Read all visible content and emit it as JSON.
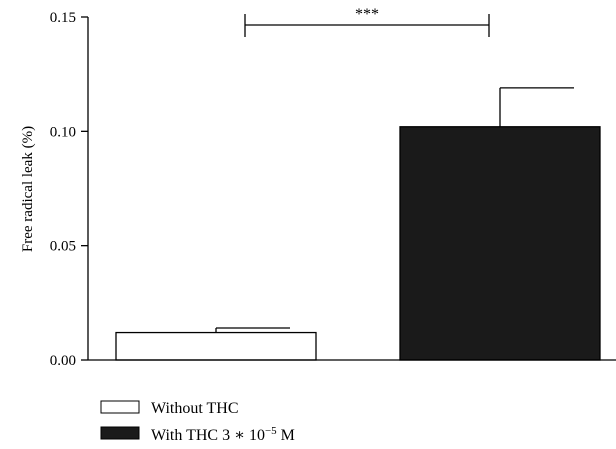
{
  "chart_data": {
    "type": "bar",
    "categories": [
      "Without THC",
      "With THC 3 * 10^-5 M"
    ],
    "values": [
      0.012,
      0.102
    ],
    "errors": [
      0.002,
      0.017
    ],
    "ylabel": "Free radical leak (%)",
    "ylim": [
      0,
      0.15
    ],
    "yticks": [
      0.0,
      0.05,
      0.1,
      0.15
    ],
    "ytick_labels": [
      "0.00",
      "0.05",
      "0.10",
      "0.15"
    ],
    "grid": false,
    "legend_position": "bottom-left",
    "colors": [
      "#ffffff",
      "#1a1a1a"
    ],
    "legend": [
      {
        "label": "Without THC"
      },
      {
        "label_prefix": "With THC 3 ∗ 10",
        "label_exponent": "−5",
        "label_suffix": " M"
      }
    ],
    "significance": {
      "label": "***",
      "between": [
        0,
        1
      ]
    }
  }
}
